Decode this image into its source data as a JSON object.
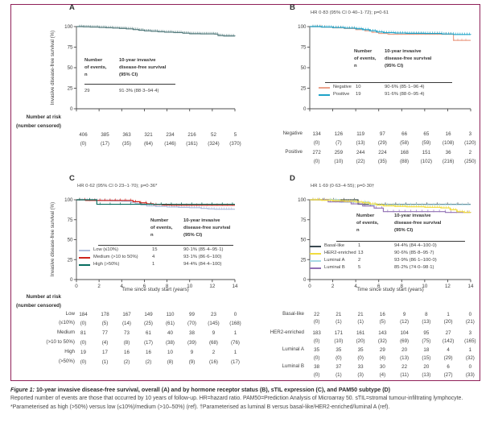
{
  "page": {
    "background": "#ffffff",
    "border_color": "#8f2058"
  },
  "shared": {
    "ylabel": "Invasive disease-free survival (%)",
    "xlabel": "Time since study start (years)",
    "risk_header_line1": "Number at risk",
    "risk_header_line2": "(number censored)",
    "inset_header1_lines": [
      "Number",
      "of events,",
      "n"
    ],
    "inset_header2_lines": [
      "10-year invasive",
      "disease-free survival",
      "(95% CI)"
    ],
    "yticks": [
      100,
      75,
      50,
      25,
      0
    ],
    "xticks": [
      0,
      2,
      4,
      6,
      8,
      10,
      12,
      14
    ],
    "ylim": [
      0,
      100
    ],
    "xlim": [
      0,
      14
    ]
  },
  "caption": {
    "label": "Figure 1:",
    "title": "10-year invasive disease-free survival, overall (A) and by hormone receptor status (B), sTIL expression (C), and PAM50 subtype (D)",
    "body": "Reported number of events are those that occurred by 10 years of follow-up. HR=hazard ratio. PAM50=Prediction Analysis of Microarray 50. sTIL=stromal tumour-infiltrating lymphocyte. *Parameterised as high (>50%) versus low (≤10%)/medium (>10–50%) (ref). †Parameterised as luminal B versus basal-like/HER2-enriched/luminal A (ref)."
  },
  "chart_data": [
    {
      "panel": "A",
      "type": "line",
      "subtype": "kaplan-meier-step",
      "hr_text": null,
      "series": [
        {
          "name": "Overall",
          "legend_label": null,
          "color": "#557c7e",
          "events": "29",
          "survival": "91·3% (88·3–94·4)",
          "points": [
            [
              0,
              100
            ],
            [
              0.6,
              99.7
            ],
            [
              1.2,
              99.4
            ],
            [
              2,
              99
            ],
            [
              2.6,
              98.6
            ],
            [
              3.2,
              98.2
            ],
            [
              3.8,
              97.8
            ],
            [
              4.4,
              97.2
            ],
            [
              5,
              96.4
            ],
            [
              5.5,
              95.6
            ],
            [
              6,
              94.8
            ],
            [
              6.6,
              94.3
            ],
            [
              7.2,
              93.7
            ],
            [
              7.8,
              93.2
            ],
            [
              8.6,
              92.7
            ],
            [
              9.4,
              92
            ],
            [
              10,
              91.3
            ],
            [
              11,
              91.1
            ],
            [
              12.2,
              90.9
            ],
            [
              12.5,
              89
            ],
            [
              13,
              88.6
            ],
            [
              14,
              88.4
            ]
          ],
          "risk": [
            406,
            385,
            363,
            321,
            234,
            216,
            52,
            5
          ],
          "censored": [
            0,
            17,
            35,
            64,
            146,
            161,
            324,
            370
          ],
          "risk_label_lines": []
        }
      ]
    },
    {
      "panel": "B",
      "type": "line",
      "subtype": "kaplan-meier-step",
      "hr_text": "HR 0·83 (95% CI 0·40–1·72); p=0·61",
      "series": [
        {
          "name": "Negative",
          "legend_label": "Negative",
          "color": "#eba28b",
          "events": "10",
          "survival": "90·6% (85·1–96·4)",
          "points": [
            [
              0,
              100
            ],
            [
              1,
              99.3
            ],
            [
              2,
              98.5
            ],
            [
              3,
              97.6
            ],
            [
              4,
              96.3
            ],
            [
              4.8,
              94.8
            ],
            [
              5.4,
              93
            ],
            [
              6,
              91.6
            ],
            [
              6.8,
              90.6
            ],
            [
              12.3,
              90.6
            ],
            [
              12.5,
              83.2
            ],
            [
              14,
              83.2
            ]
          ],
          "risk": [
            134,
            126,
            119,
            97,
            66,
            65,
            16,
            3
          ],
          "censored": [
            0,
            7,
            13,
            29,
            58,
            59,
            108,
            120
          ],
          "risk_label_lines": [
            "Negative"
          ]
        },
        {
          "name": "Positive",
          "legend_label": "Positive",
          "color": "#1fa3c8",
          "events": "19",
          "survival": "91·6% (88·0–95·4)",
          "points": [
            [
              0,
              100
            ],
            [
              1,
              99.4
            ],
            [
              2,
              98.8
            ],
            [
              3,
              98.1
            ],
            [
              4,
              97.3
            ],
            [
              4.6,
              96.2
            ],
            [
              5.2,
              94.8
            ],
            [
              5.8,
              93.4
            ],
            [
              6.4,
              92.6
            ],
            [
              7.4,
              92.1
            ],
            [
              8.4,
              91.8
            ],
            [
              10,
              91.6
            ],
            [
              11.5,
              91
            ],
            [
              12.5,
              90.4
            ],
            [
              14,
              90.1
            ]
          ],
          "risk": [
            272,
            259,
            244,
            224,
            168,
            151,
            36,
            2
          ],
          "censored": [
            0,
            10,
            22,
            35,
            88,
            102,
            216,
            250
          ],
          "risk_label_lines": [
            "Positive"
          ]
        }
      ]
    },
    {
      "panel": "C",
      "type": "line",
      "subtype": "kaplan-meier-step",
      "hr_text": "HR 0·62 (95% CI 0·23–1·70); p=0·36*",
      "series": [
        {
          "name": "Low",
          "legend_label": "Low (≤10%)",
          "color": "#afbcdc",
          "events": "15",
          "survival": "90·1% (85·4–95·1)",
          "points": [
            [
              0,
              100
            ],
            [
              1,
              99.4
            ],
            [
              2,
              99
            ],
            [
              3,
              98.6
            ],
            [
              4,
              98.1
            ],
            [
              4.8,
              96.8
            ],
            [
              5.2,
              95.2
            ],
            [
              5.7,
              93.6
            ],
            [
              6.2,
              92.4
            ],
            [
              7,
              91.6
            ],
            [
              8,
              91
            ],
            [
              9,
              90.5
            ],
            [
              10,
              90.1
            ],
            [
              11,
              89.2
            ],
            [
              11.6,
              88.6
            ],
            [
              12.2,
              88.2
            ],
            [
              14,
              88.2
            ]
          ],
          "risk": [
            184,
            178,
            167,
            149,
            110,
            99,
            23,
            0
          ],
          "censored": [
            0,
            5,
            14,
            25,
            61,
            70,
            145,
            168
          ],
          "risk_label_lines": [
            "Low",
            "(≤10%)"
          ]
        },
        {
          "name": "Medium",
          "legend_label": "Medium (>10 to 50%)",
          "color": "#cf241c",
          "events": "4",
          "survival": "93·1% (86·6–100)",
          "points": [
            [
              0,
              100
            ],
            [
              0.8,
              99.2
            ],
            [
              4.4,
              99.2
            ],
            [
              5,
              97.6
            ],
            [
              5.6,
              96.2
            ],
            [
              6.2,
              95
            ],
            [
              6.8,
              94
            ],
            [
              7.6,
              93.4
            ],
            [
              8.4,
              93.1
            ],
            [
              14,
              93.1
            ]
          ],
          "risk": [
            81,
            77,
            73,
            61,
            40,
            38,
            9,
            1
          ],
          "censored": [
            0,
            4,
            8,
            17,
            38,
            39,
            68,
            76
          ],
          "risk_label_lines": [
            "Medium",
            "(>10 to 50%)"
          ]
        },
        {
          "name": "High",
          "legend_label": "High (>50%)",
          "color": "#086e60",
          "events": "1",
          "survival": "94·4% (84·4–100)",
          "points": [
            [
              0,
              100
            ],
            [
              1.8,
              94.4
            ],
            [
              14,
              94.4
            ]
          ],
          "risk": [
            19,
            17,
            16,
            16,
            10,
            9,
            2,
            1
          ],
          "censored": [
            0,
            1,
            2,
            2,
            8,
            9,
            16,
            17
          ],
          "risk_label_lines": [
            "High",
            "(>50%)"
          ]
        }
      ]
    },
    {
      "panel": "D",
      "type": "line",
      "subtype": "kaplan-meier-step",
      "hr_text": "HR 1·69 (0·63–4·55); p=0·30†",
      "series": [
        {
          "name": "Basal-like",
          "legend_label": "Basal-like",
          "color": "#3a4a52",
          "events": "1",
          "survival": "94·4% (84·4–100·0)",
          "points": [
            [
              0,
              100
            ],
            [
              4.2,
              94.4
            ],
            [
              14,
              94.4
            ]
          ],
          "risk": [
            22,
            21,
            21,
            16,
            9,
            8,
            1,
            0
          ],
          "censored": [
            0,
            1,
            1,
            5,
            12,
            13,
            20,
            21
          ],
          "risk_label_lines": [
            "Basal-like"
          ]
        },
        {
          "name": "HER2-enriched",
          "legend_label": "HER2-enriched",
          "color": "#f1dc3e",
          "events": "13",
          "survival": "90·6% (85·8–95·7)",
          "points": [
            [
              0,
              100
            ],
            [
              1,
              99.3
            ],
            [
              2,
              98.6
            ],
            [
              3,
              98
            ],
            [
              4,
              97.2
            ],
            [
              4.6,
              96.2
            ],
            [
              5.2,
              94.8
            ],
            [
              5.8,
              93.4
            ],
            [
              6.4,
              92.4
            ],
            [
              7.4,
              91.8
            ],
            [
              8.4,
              91.2
            ],
            [
              10,
              90.6
            ],
            [
              11.4,
              89.8
            ],
            [
              12.2,
              87.5
            ],
            [
              12.8,
              85
            ],
            [
              13.4,
              84.2
            ],
            [
              14,
              84
            ]
          ],
          "risk": [
            183,
            171,
            161,
            143,
            104,
            95,
            27,
            3
          ],
          "censored": [
            0,
            10,
            20,
            32,
            69,
            75,
            142,
            165
          ],
          "risk_label_lines": [
            "HER2-enriched"
          ]
        },
        {
          "name": "Luminal A",
          "legend_label": "Luminal A",
          "color": "#a6d9e6",
          "events": "2",
          "survival": "93·9% (86·1–100·0)",
          "points": [
            [
              0,
              100
            ],
            [
              2.6,
              97.1
            ],
            [
              5.2,
              93.9
            ],
            [
              14,
              93.9
            ]
          ],
          "risk": [
            35,
            35,
            35,
            29,
            20,
            18,
            4,
            1
          ],
          "censored": [
            0,
            0,
            0,
            4,
            13,
            15,
            29,
            32
          ],
          "risk_label_lines": [
            "Luminal A"
          ]
        },
        {
          "name": "Luminal B",
          "legend_label": "Luminal B",
          "color": "#9171b5",
          "events": "5",
          "survival": "85·2% (74·0–98·1)",
          "points": [
            [
              0,
              100
            ],
            [
              1.6,
              97.4
            ],
            [
              3.6,
              94.9
            ],
            [
              4.6,
              92.3
            ],
            [
              5.6,
              89.6
            ],
            [
              6.4,
              85.2
            ],
            [
              11,
              85.2
            ],
            [
              11.8,
              84.2
            ],
            [
              14,
              83.8
            ]
          ],
          "risk": [
            38,
            37,
            33,
            30,
            22,
            20,
            6,
            0
          ],
          "censored": [
            0,
            1,
            3,
            4,
            11,
            13,
            27,
            33
          ],
          "risk_label_lines": [
            "Luminal B"
          ]
        }
      ]
    }
  ]
}
